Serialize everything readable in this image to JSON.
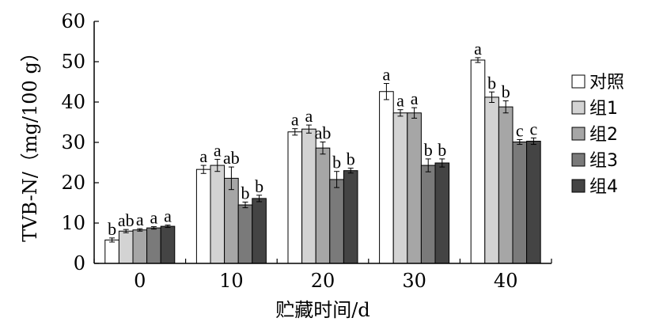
{
  "chart_data": {
    "type": "bar",
    "xlabel": "贮藏时间/d",
    "ylabel": "TVB-N/（mg/100 g）",
    "ylim": [
      0,
      60
    ],
    "yticks": [
      0,
      10,
      20,
      30,
      40,
      50,
      60
    ],
    "categories": [
      "0",
      "10",
      "20",
      "30",
      "40"
    ],
    "legend_position": "right",
    "series": [
      {
        "name": "对照",
        "color": "#ffffff",
        "values": [
          5.8,
          23.3,
          32.6,
          42.6,
          50.4
        ],
        "errors": [
          0.5,
          1.0,
          0.8,
          2.0,
          0.6
        ],
        "labels": [
          "b",
          "a",
          "a",
          "a",
          "a"
        ]
      },
      {
        "name": "组1",
        "color": "#d3d3d3",
        "values": [
          8.0,
          24.3,
          33.3,
          37.3,
          41.2
        ],
        "errors": [
          0.4,
          1.5,
          1.0,
          0.8,
          1.3
        ],
        "labels": [
          "ab",
          "a",
          "a",
          "a",
          "b"
        ]
      },
      {
        "name": "组2",
        "color": "#a6a6a6",
        "values": [
          8.3,
          21.1,
          28.6,
          37.3,
          38.8
        ],
        "errors": [
          0.3,
          2.8,
          1.5,
          1.3,
          1.5
        ],
        "labels": [
          "a",
          "ab",
          "ab",
          "a",
          "b"
        ]
      },
      {
        "name": "组3",
        "color": "#7a7a7a",
        "values": [
          8.8,
          14.5,
          20.8,
          24.3,
          30.1
        ],
        "errors": [
          0.3,
          0.7,
          2.0,
          1.6,
          0.6
        ],
        "labels": [
          "a",
          "b",
          "b",
          "b",
          "c"
        ]
      },
      {
        "name": "组4",
        "color": "#444444",
        "values": [
          9.2,
          16.1,
          23.0,
          24.9,
          30.3
        ],
        "errors": [
          0.3,
          0.8,
          0.6,
          1.0,
          0.8
        ],
        "labels": [
          "a",
          "b",
          "b",
          "b",
          "c"
        ]
      }
    ]
  }
}
